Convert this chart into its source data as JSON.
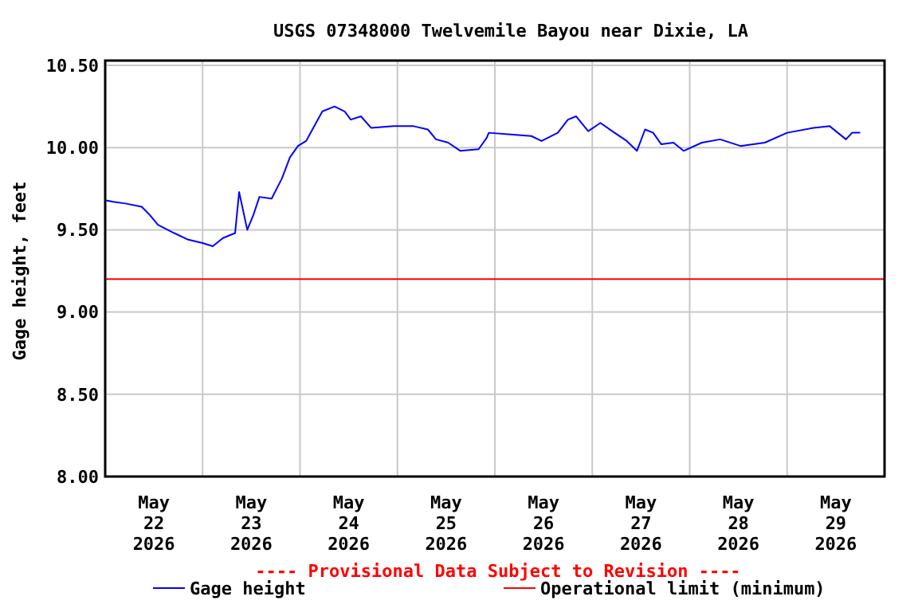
{
  "chart_data": {
    "type": "line",
    "title": "USGS 07348000 Twelvemile Bayou near Dixie, LA",
    "ylabel": "Gage height, feet",
    "annotations": [
      "---- Provisional Data Subject to Revision ----"
    ],
    "xlim": [
      "2026-05-22T00:00",
      "2026-05-30T00:00"
    ],
    "xticks": [
      {
        "value": "2026-05-22T00:00",
        "label": null
      },
      {
        "value": "2026-05-22T12:00",
        "label": "May\n22\n2026"
      },
      {
        "value": "2026-05-23T00:00",
        "label": null
      },
      {
        "value": "2026-05-23T12:00",
        "label": "May\n23\n2026"
      },
      {
        "value": "2026-05-24T00:00",
        "label": null
      },
      {
        "value": "2026-05-24T12:00",
        "label": "May\n24\n2026"
      },
      {
        "value": "2026-05-25T00:00",
        "label": null
      },
      {
        "value": "2026-05-25T12:00",
        "label": "May\n25\n2026"
      },
      {
        "value": "2026-05-26T00:00",
        "label": null
      },
      {
        "value": "2026-05-26T12:00",
        "label": "May\n26\n2026"
      },
      {
        "value": "2026-05-27T00:00",
        "label": null
      },
      {
        "value": "2026-05-27T12:00",
        "label": "May\n27\n2026"
      },
      {
        "value": "2026-05-28T00:00",
        "label": null
      },
      {
        "value": "2026-05-28T12:00",
        "label": "May\n28\n2026"
      },
      {
        "value": "2026-05-29T00:00",
        "label": null
      },
      {
        "value": "2026-05-29T12:00",
        "label": "May\n29\n2026"
      },
      {
        "value": "2026-05-30T00:00",
        "label": null
      }
    ],
    "ylim": [
      8,
      10.5
    ],
    "yticks": [
      {
        "value": 8,
        "label": "8.00"
      },
      {
        "value": 8.5,
        "label": "8.50"
      },
      {
        "value": 9,
        "label": "9.00"
      },
      {
        "value": 9.5,
        "label": "9.50"
      },
      {
        "value": 10,
        "label": "10.00"
      },
      {
        "value": 10.5,
        "label": "10.50"
      }
    ],
    "grid": true,
    "legend": "bottom",
    "ref_lines": [
      {
        "axis": "y",
        "value": 9.2,
        "label": "Operational limit (minimum)",
        "color": "#ff0000"
      }
    ],
    "x": [
      "2026-05-22T00:00",
      "2026-05-22T02:00",
      "2026-05-22T05:00",
      "2026-05-22T09:00",
      "2026-05-22T11:00",
      "2026-05-22T13:00",
      "2026-05-22T17:00",
      "2026-05-22T20:30",
      "2026-05-23T00:00",
      "2026-05-23T02:30",
      "2026-05-23T05:00",
      "2026-05-23T08:00",
      "2026-05-23T09:00",
      "2026-05-23T11:00",
      "2026-05-23T12:30",
      "2026-05-23T14:00",
      "2026-05-23T17:00",
      "2026-05-23T19:30",
      "2026-05-23T21:30",
      "2026-05-23T23:30",
      "2026-05-24T01:30",
      "2026-05-24T05:30",
      "2026-05-24T08:30",
      "2026-05-24T11:00",
      "2026-05-24T12:30",
      "2026-05-24T15:00",
      "2026-05-24T17:30",
      "2026-05-24T23:00",
      "2026-05-25T04:00",
      "2026-05-25T07:30",
      "2026-05-25T09:30",
      "2026-05-25T12:30",
      "2026-05-25T15:30",
      "2026-05-25T20:00",
      "2026-05-25T22:00",
      "2026-05-25T22:30",
      "2026-05-26T04:00",
      "2026-05-26T09:00",
      "2026-05-26T11:30",
      "2026-05-26T15:30",
      "2026-05-26T18:00",
      "2026-05-26T20:00",
      "2026-05-26T23:00",
      "2026-05-27T02:00",
      "2026-05-27T05:30",
      "2026-05-27T08:30",
      "2026-05-27T11:00",
      "2026-05-27T13:00",
      "2026-05-27T15:00",
      "2026-05-27T17:00",
      "2026-05-27T20:00",
      "2026-05-27T22:30",
      "2026-05-28T03:00",
      "2026-05-28T07:30",
      "2026-05-28T12:30",
      "2026-05-28T18:30",
      "2026-05-29T00:00",
      "2026-05-29T06:30",
      "2026-05-29T10:30",
      "2026-05-29T12:30",
      "2026-05-29T14:30",
      "2026-05-29T16:00",
      "2026-05-29T18:00"
    ],
    "series": [
      {
        "name": "Gage height",
        "color": "#0000ff",
        "values": [
          9.68,
          9.67,
          9.66,
          9.64,
          9.59,
          9.53,
          9.48,
          9.44,
          9.42,
          9.4,
          9.45,
          9.48,
          9.73,
          9.5,
          9.59,
          9.7,
          9.69,
          9.81,
          9.94,
          10.01,
          10.04,
          10.22,
          10.25,
          10.22,
          10.17,
          10.19,
          10.12,
          10.13,
          10.13,
          10.11,
          10.05,
          10.03,
          9.98,
          9.99,
          10.06,
          10.09,
          10.08,
          10.07,
          10.04,
          10.09,
          10.17,
          10.19,
          10.1,
          10.15,
          10.09,
          10.04,
          9.98,
          10.11,
          10.09,
          10.02,
          10.03,
          9.98,
          10.03,
          10.05,
          10.01,
          10.03,
          10.09,
          10.12,
          10.13,
          10.09,
          10.05,
          10.09,
          10.09
        ]
      }
    ]
  }
}
